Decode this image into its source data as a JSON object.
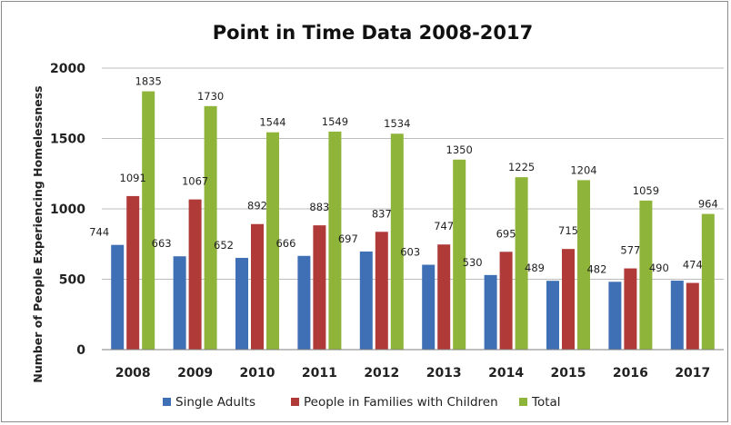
{
  "chart_data": {
    "type": "bar",
    "title": "Point in Time Data 2008-2017",
    "xlabel": "",
    "ylabel": "Number of People Experiencing Homelessness",
    "ylim": [
      0,
      2000
    ],
    "yticks": [
      0,
      500,
      1000,
      1500,
      2000
    ],
    "grid": true,
    "legend_position": "bottom",
    "categories": [
      "2008",
      "2009",
      "2010",
      "2011",
      "2012",
      "2013",
      "2014",
      "2015",
      "2016",
      "2017"
    ],
    "series": [
      {
        "name": "Single Adults",
        "color": "#3f6fb5",
        "values": [
          744,
          663,
          652,
          666,
          697,
          603,
          530,
          489,
          482,
          490
        ]
      },
      {
        "name": "People in Families with Children",
        "color": "#b03a37",
        "values": [
          1091,
          1067,
          892,
          883,
          837,
          747,
          695,
          715,
          577,
          474
        ]
      },
      {
        "name": "Total",
        "color": "#8fb43a",
        "values": [
          1835,
          1730,
          1544,
          1549,
          1534,
          1350,
          1225,
          1204,
          1059,
          964
        ]
      }
    ]
  }
}
